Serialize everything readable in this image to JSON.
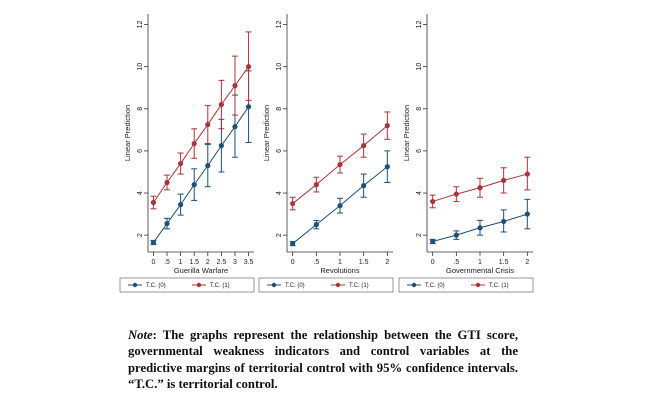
{
  "chart_data": [
    {
      "type": "line",
      "xlabel": "Guerilla Warfare",
      "ylabel": "Linear Prediction",
      "x": [
        0,
        0.5,
        1,
        1.5,
        2,
        2.5,
        3,
        3.5
      ],
      "x_tick_labels": [
        "0",
        ".5",
        "1",
        "1.5",
        "2",
        "2.5",
        "3",
        "3.5"
      ],
      "y_ticks": [
        "2",
        "4",
        "6",
        "8",
        "10",
        "12"
      ],
      "ylim": [
        1.2,
        12.5
      ],
      "xlim": [
        -0.2,
        3.7
      ],
      "series": [
        {
          "name": "T.C. (0)",
          "values": [
            1.65,
            2.55,
            3.45,
            4.4,
            5.3,
            6.25,
            7.15,
            8.1
          ],
          "ci_low": [
            1.55,
            2.3,
            2.95,
            3.65,
            4.3,
            5.0,
            5.7,
            6.4
          ],
          "ci_high": [
            1.75,
            2.8,
            3.95,
            5.15,
            6.3,
            7.5,
            8.65,
            9.8
          ]
        },
        {
          "name": "T.C. (1)",
          "values": [
            3.55,
            4.5,
            5.4,
            6.35,
            7.25,
            8.2,
            9.1,
            10.0
          ],
          "ci_low": [
            3.25,
            4.15,
            4.9,
            5.65,
            6.35,
            7.05,
            7.7,
            8.4
          ],
          "ci_high": [
            3.85,
            4.85,
            5.9,
            7.05,
            8.15,
            9.35,
            10.5,
            11.65
          ]
        }
      ]
    },
    {
      "type": "line",
      "xlabel": "Revolutions",
      "ylabel": "Linear Prediction",
      "x": [
        0,
        0.5,
        1,
        1.5,
        2
      ],
      "x_tick_labels": [
        "0",
        ".5",
        "1",
        "1.5",
        "2"
      ],
      "y_ticks": [
        "2",
        "4",
        "6",
        "8",
        "10",
        "12"
      ],
      "ylim": [
        1.2,
        12.5
      ],
      "xlim": [
        -0.12,
        2.12
      ],
      "series": [
        {
          "name": "T.C. (0)",
          "values": [
            1.6,
            2.5,
            3.4,
            4.35,
            5.25
          ],
          "ci_low": [
            1.5,
            2.3,
            3.05,
            3.8,
            4.5
          ],
          "ci_high": [
            1.7,
            2.7,
            3.75,
            4.9,
            6.0
          ]
        },
        {
          "name": "T.C. (1)",
          "values": [
            3.5,
            4.4,
            5.35,
            6.25,
            7.2
          ],
          "ci_low": [
            3.2,
            4.05,
            4.95,
            5.7,
            6.55
          ],
          "ci_high": [
            3.8,
            4.75,
            5.75,
            6.8,
            7.85
          ]
        }
      ]
    },
    {
      "type": "line",
      "xlabel": "Governmental Crisis",
      "ylabel": "Linear Prediction",
      "x": [
        0,
        0.5,
        1,
        1.5,
        2
      ],
      "x_tick_labels": [
        "0",
        ".5",
        "1",
        "1.5",
        "2"
      ],
      "y_ticks": [
        "2",
        "4",
        "6",
        "8",
        "10",
        "12"
      ],
      "ylim": [
        1.2,
        12.5
      ],
      "xlim": [
        -0.12,
        2.12
      ],
      "series": [
        {
          "name": "T.C. (0)",
          "values": [
            1.7,
            2.0,
            2.35,
            2.65,
            3.0
          ],
          "ci_low": [
            1.6,
            1.8,
            2.0,
            2.15,
            2.3
          ],
          "ci_high": [
            1.8,
            2.2,
            2.7,
            3.2,
            3.7
          ]
        },
        {
          "name": "T.C. (1)",
          "values": [
            3.6,
            3.95,
            4.25,
            4.6,
            4.9
          ],
          "ci_low": [
            3.3,
            3.6,
            3.8,
            4.0,
            4.15
          ],
          "ci_high": [
            3.9,
            4.3,
            4.7,
            5.2,
            5.7
          ]
        }
      ]
    }
  ],
  "colors": {
    "series0": "#1f4e79",
    "series1": "#a8353a",
    "axis": "#333333"
  },
  "note": {
    "lead": "Note",
    "text": ": The graphs represent the relationship between the GTI score, governmental weakness indicators and control variables at the predictive margins of territorial control with 95% confidence intervals. “T.C.” is territorial control."
  }
}
